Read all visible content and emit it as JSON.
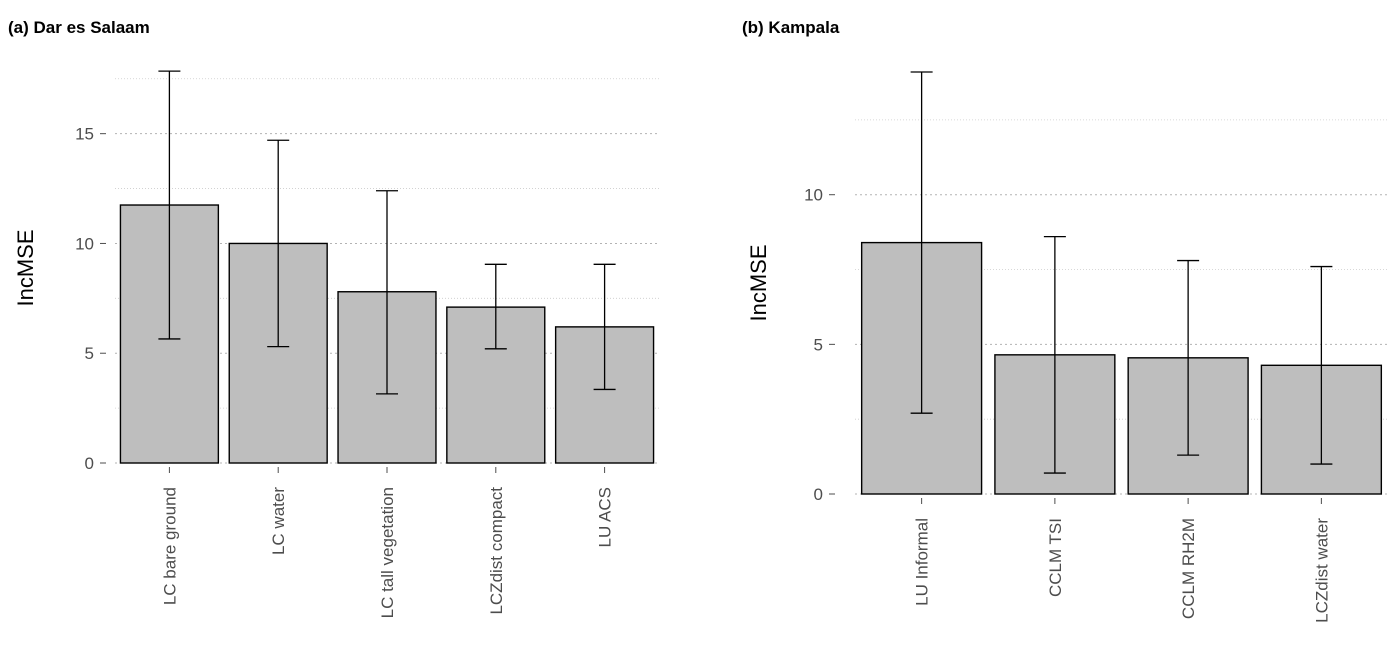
{
  "chart_data": [
    {
      "type": "bar",
      "title": "(a) Dar es Salaam",
      "xlabel": "",
      "ylabel": "IncMSE",
      "ylim": [
        0,
        17.9
      ],
      "yticks": [
        0,
        5,
        10,
        15
      ],
      "ytick_labels": [
        "0",
        "5",
        "10",
        "15"
      ],
      "minor_grid": [
        2.5,
        7.5,
        12.5,
        17.5
      ],
      "grid": true,
      "categories": [
        "LC bare ground",
        "LC water",
        "LC tall vegetation",
        "LCZdist compact",
        "LU ACS"
      ],
      "values": [
        11.75,
        10.0,
        7.8,
        7.1,
        6.2
      ],
      "error_low": [
        5.65,
        5.3,
        3.15,
        5.2,
        3.35
      ],
      "error_high": [
        17.85,
        14.7,
        12.4,
        9.05,
        9.05
      ],
      "colors": {
        "bar_fill": "#bebebe",
        "bar_stroke": "#000000",
        "grid": "#cccccc"
      }
    },
    {
      "type": "bar",
      "title": "(b) Kampala",
      "xlabel": "",
      "ylabel": "IncMSE",
      "ylim": [
        0,
        14.1
      ],
      "yticks": [
        0,
        5,
        10
      ],
      "ytick_labels": [
        "0",
        "5",
        "10"
      ],
      "minor_grid": [
        2.5,
        7.5,
        12.5
      ],
      "grid": true,
      "categories": [
        "LU Informal",
        "CCLM TSI",
        "CCLM RH2M",
        "LCZdist water"
      ],
      "values": [
        8.4,
        4.65,
        4.55,
        4.3
      ],
      "error_low": [
        2.7,
        0.7,
        1.3,
        1.0
      ],
      "error_high": [
        14.1,
        8.6,
        7.8,
        7.6
      ],
      "colors": {
        "bar_fill": "#bebebe",
        "bar_stroke": "#000000",
        "grid": "#cccccc"
      }
    }
  ]
}
